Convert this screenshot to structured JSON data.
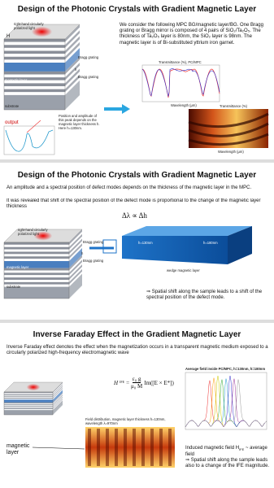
{
  "slides": [
    {
      "title": "Design of the Photonic Crystals with Gradient Magnetic Layer",
      "text": "We consider the following MPC BG/magnetic layer/BG. One Bragg grating or Bragg mirror is composed of 4 pairs of SiO₂/Ta₂O₅. The thickness of Ta₂O₅ layer is 80nm, the SiO₂ layer is 98nm. The magnetic layer is of Bi-substituted yttrium iron garnet.",
      "labels": [
        "right-hand circularly polarized light",
        "H",
        "Bragg grating",
        "h",
        "Bragg grating",
        "magnetic layer",
        "substrate",
        "output",
        "Position and amplitude of this peak depends on the magnetic layer thickness h. Here h=130nm."
      ],
      "plot_titles": [
        "Transmittance (%), PC/MPC",
        "Transmittance (%)"
      ],
      "axis_labels": [
        "Wavelength (μm)",
        "Wavelength (μm)"
      ]
    },
    {
      "title": "Design of the Photonic Crystals with Gradient Magnetic Layer",
      "text": [
        "An amplitude and a spectral position of defect modes depends on the thickness of the magnetic layer in the MPC.",
        "It was revealed that shift of the spectral position of the defect mode is proportional to the change of the magnetic layer thickness"
      ],
      "formula": "Δλ ∝ Δh",
      "labels": [
        "right-hand circularly polarized light",
        "Bragg grating",
        "h",
        "Bragg grating",
        "magnetic layer",
        "substrate"
      ],
      "wedge_labels": [
        "h=130nm",
        "h=180nm",
        "wedge magnetic layer"
      ],
      "conclusion": "⇒ Spatial shift along the sample leads to a shift of the spectral position of the defect mode."
    },
    {
      "title": "Inverse Faraday Effect in the Gradient Magnetic Layer",
      "text": "Inverse Faraday effect denotes the effect when the magnetization occurs in a transparent magnetic medium exposed to a circularly polarized high-frequency electromagnetic wave",
      "formula": {
        "lhs": "H",
        "lhs_sub": "IFE",
        "eq": "=",
        "num": "ε₀ g",
        "den": "μ₀ M",
        "rhs": "Im([E × E*])"
      },
      "plot_title": "Average field inside PC/MPC, h=130nm, h=180nm",
      "field_caption": "Field distribution, magnetic layer thickness h=130nm, wavelength λ=970nm",
      "labels": [
        "magnetic layer"
      ],
      "conclusion": [
        "Induced magnetic field H",
        "IFE",
        "~ average field",
        "⇒ Spatial shift along the sample leads also to a change of the IFE magnitude."
      ]
    }
  ]
}
